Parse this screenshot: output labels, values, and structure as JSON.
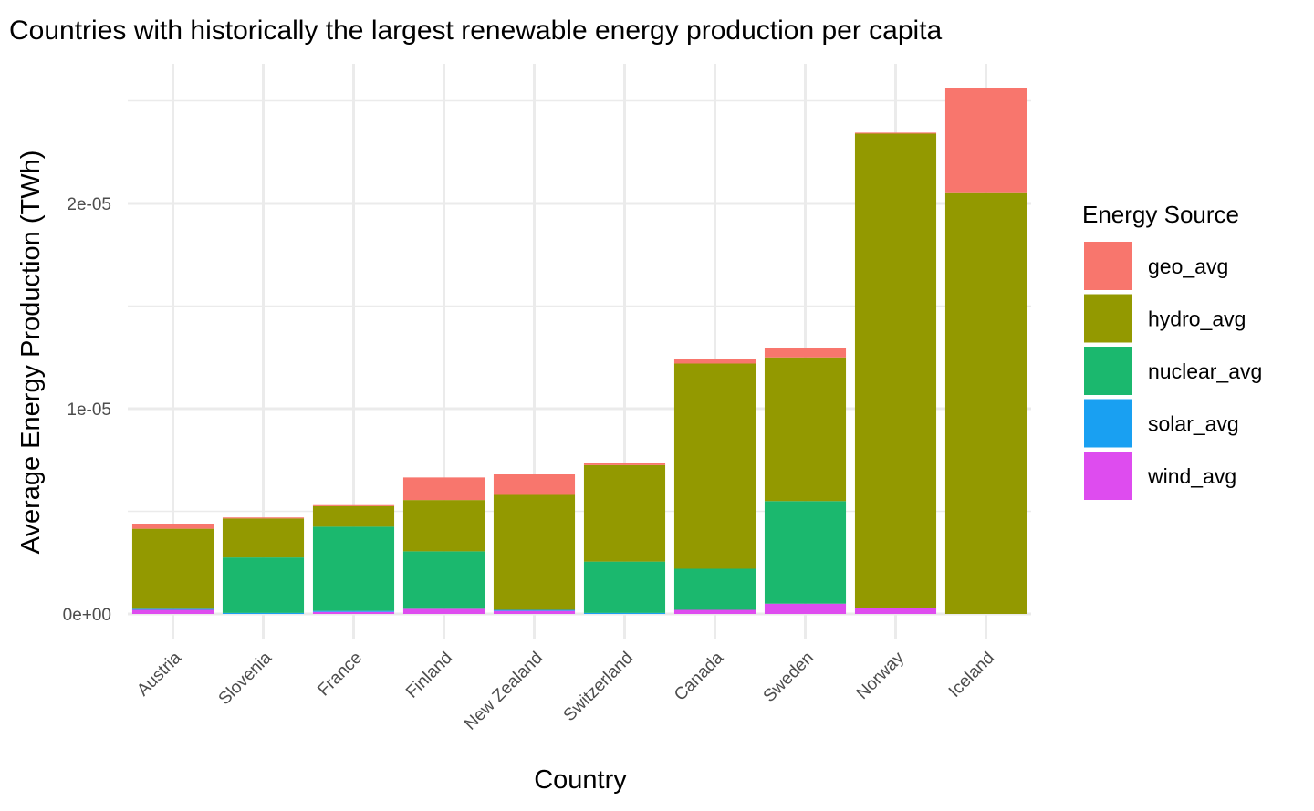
{
  "colors": {
    "geo_avg": "#F8766D",
    "hydro_avg": "#939900",
    "nuclear_avg": "#1BB86E",
    "solar_avg": "#19A0F2",
    "wind_avg": "#DE4CEF",
    "grid": "#EBEBEB"
  },
  "chart_data": {
    "type": "bar",
    "stacked": true,
    "title": "Countries with historically the largest renewable energy production per capita",
    "xlabel": "Country",
    "ylabel": "Average Energy Production (TWh)",
    "ylim": [
      0,
      2.55e-05
    ],
    "yticks": [
      0,
      1e-05,
      2e-05
    ],
    "ytick_labels": [
      "0e+00",
      "1e-05",
      "2e-05"
    ],
    "grid": true,
    "legend_position": "right",
    "legend_title": "Energy Source",
    "categories": [
      "Austria",
      "Slovenia",
      "France",
      "Finland",
      "New Zealand",
      "Switzerland",
      "Canada",
      "Sweden",
      "Norway",
      "Iceland"
    ],
    "stack_order_bottom_to_top": [
      "wind_avg",
      "solar_avg",
      "nuclear_avg",
      "hydro_avg",
      "geo_avg"
    ],
    "series": [
      {
        "name": "geo_avg",
        "values": [
          2.5e-07,
          5e-08,
          5e-08,
          1.1e-06,
          1e-06,
          1e-07,
          2e-07,
          4.5e-07,
          5e-08,
          5.1e-06
        ]
      },
      {
        "name": "hydro_avg",
        "values": [
          3.9e-06,
          1.9e-06,
          1e-06,
          2.5e-06,
          5.6e-06,
          4.7e-06,
          1e-05,
          7e-06,
          2.31e-05,
          2.05e-05
        ]
      },
      {
        "name": "nuclear_avg",
        "values": [
          0,
          2.7e-06,
          4.1e-06,
          2.8e-06,
          0,
          2.5e-06,
          2e-06,
          5e-06,
          0,
          0
        ]
      },
      {
        "name": "solar_avg",
        "values": [
          5e-08,
          5e-08,
          5e-08,
          0,
          5e-08,
          5e-08,
          0,
          0,
          0,
          0
        ]
      },
      {
        "name": "wind_avg",
        "values": [
          2e-07,
          0,
          1e-07,
          2.5e-07,
          1.5e-07,
          0,
          2e-07,
          5e-07,
          3e-07,
          0
        ]
      }
    ]
  }
}
